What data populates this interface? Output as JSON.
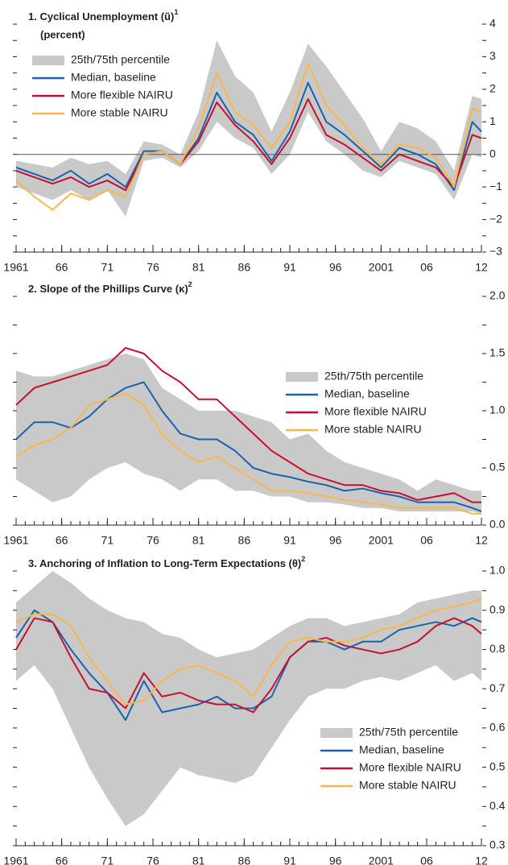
{
  "chart_data": [
    {
      "type": "line",
      "title": "1. Cyclical Unemployment (ũ)",
      "title_note": "1",
      "subtitle": "(percent)",
      "x": [
        1961,
        1963,
        1965,
        1967,
        1969,
        1971,
        1973,
        1975,
        1977,
        1979,
        1981,
        1983,
        1985,
        1987,
        1989,
        1991,
        1993,
        1995,
        1997,
        1999,
        2001,
        2003,
        2005,
        2007,
        2009,
        2011,
        2012
      ],
      "xlim": [
        1961,
        2012
      ],
      "xticks": [
        1961,
        {
          "value": 1966,
          "label": "66"
        },
        {
          "value": 1971,
          "label": "71"
        },
        {
          "value": 1976,
          "label": "76"
        },
        {
          "value": 1981,
          "label": "81"
        },
        {
          "value": 1986,
          "label": "86"
        },
        {
          "value": 1991,
          "label": "91"
        },
        {
          "value": 1996,
          "label": "96"
        },
        2001,
        {
          "value": 2006,
          "label": "06"
        },
        {
          "value": 2012,
          "label": "12"
        }
      ],
      "ylim": [
        -3,
        4
      ],
      "yticks": [
        {
          "value": -3,
          "label": "−3"
        },
        {
          "value": -2,
          "label": "−2"
        },
        {
          "value": -1,
          "label": "−1"
        },
        0,
        1,
        2,
        3,
        4
      ],
      "zero_line": true,
      "legend": "top-left",
      "series": [
        {
          "name": "25th/75th percentile",
          "type": "band",
          "color": "#c9c9c9",
          "low": [
            -1.0,
            -1.2,
            -1.4,
            -1.1,
            -1.4,
            -1.1,
            -1.9,
            -0.2,
            -0.1,
            -0.4,
            0.1,
            1.0,
            0.5,
            0.2,
            -0.6,
            0.0,
            1.3,
            0.4,
            0.0,
            -0.5,
            -0.7,
            -0.2,
            -0.4,
            -0.6,
            -1.4,
            0.0,
            -0.1
          ],
          "high": [
            -0.2,
            -0.3,
            -0.4,
            -0.1,
            -0.3,
            -0.2,
            -0.6,
            0.4,
            0.3,
            0.0,
            1.3,
            3.5,
            2.4,
            1.9,
            0.7,
            1.9,
            3.4,
            2.7,
            1.9,
            1.1,
            0.1,
            1.0,
            0.8,
            0.4,
            -0.5,
            1.8,
            1.7
          ]
        },
        {
          "name": "Median, baseline",
          "color": "#1a62ad",
          "values": [
            -0.4,
            -0.6,
            -0.8,
            -0.5,
            -0.9,
            -0.6,
            -1.0,
            0.1,
            0.1,
            -0.3,
            0.5,
            1.9,
            1.0,
            0.6,
            -0.2,
            0.7,
            2.2,
            1.0,
            0.6,
            0.1,
            -0.4,
            0.2,
            0.0,
            -0.3,
            -1.1,
            1.0,
            0.7
          ]
        },
        {
          "name": "More flexible NAIRU",
          "color": "#c8102e",
          "values": [
            -0.5,
            -0.7,
            -0.9,
            -0.7,
            -1.0,
            -0.8,
            -1.1,
            0.0,
            0.1,
            -0.3,
            0.4,
            1.6,
            0.9,
            0.4,
            -0.3,
            0.5,
            1.7,
            0.6,
            0.3,
            -0.1,
            -0.5,
            0.0,
            -0.2,
            -0.4,
            -1.0,
            0.6,
            0.5
          ]
        },
        {
          "name": "More stable NAIRU",
          "color": "#f9b74a",
          "values": [
            -0.8,
            -1.3,
            -1.7,
            -1.2,
            -1.4,
            -1.1,
            -1.3,
            0.0,
            0.1,
            -0.3,
            0.8,
            2.5,
            1.3,
            0.9,
            0.2,
            1.0,
            2.8,
            1.5,
            0.9,
            0.2,
            -0.3,
            0.3,
            0.2,
            -0.1,
            -1.0,
            1.4,
            1.3
          ]
        }
      ]
    },
    {
      "type": "line",
      "title": "2. Slope of the Phillips Curve (κ)",
      "title_note": "2",
      "x": [
        1961,
        1963,
        1965,
        1967,
        1969,
        1971,
        1973,
        1975,
        1977,
        1979,
        1981,
        1983,
        1985,
        1987,
        1989,
        1991,
        1993,
        1995,
        1997,
        1999,
        2001,
        2003,
        2005,
        2007,
        2009,
        2011,
        2012
      ],
      "xlim": [
        1961,
        2012
      ],
      "xticks": [
        1961,
        {
          "value": 1966,
          "label": "66"
        },
        {
          "value": 1971,
          "label": "71"
        },
        {
          "value": 1976,
          "label": "76"
        },
        {
          "value": 1981,
          "label": "81"
        },
        {
          "value": 1986,
          "label": "86"
        },
        {
          "value": 1991,
          "label": "91"
        },
        {
          "value": 1996,
          "label": "96"
        },
        2001,
        {
          "value": 2006,
          "label": "06"
        },
        {
          "value": 2012,
          "label": "12"
        }
      ],
      "ylim": [
        0,
        2
      ],
      "yticks": [
        {
          "value": 0,
          "label": "0.0"
        },
        0.5,
        {
          "value": 1,
          "label": "1.0"
        },
        1.5,
        {
          "value": 2,
          "label": "2.0"
        }
      ],
      "legend": "right",
      "series": [
        {
          "name": "25th/75th percentile",
          "type": "band",
          "color": "#c9c9c9",
          "low": [
            0.4,
            0.3,
            0.2,
            0.25,
            0.4,
            0.5,
            0.55,
            0.45,
            0.4,
            0.3,
            0.4,
            0.4,
            0.3,
            0.3,
            0.25,
            0.25,
            0.2,
            0.2,
            0.18,
            0.15,
            0.15,
            0.12,
            0.12,
            0.12,
            0.12,
            0.12,
            0.1
          ],
          "high": [
            1.35,
            1.3,
            1.3,
            1.35,
            1.4,
            1.45,
            1.5,
            1.45,
            1.2,
            1.1,
            1.0,
            1.0,
            1.0,
            0.95,
            0.9,
            0.75,
            0.8,
            0.65,
            0.55,
            0.5,
            0.45,
            0.4,
            0.3,
            0.4,
            0.35,
            0.3,
            0.3
          ]
        },
        {
          "name": "Median, baseline",
          "color": "#1a62ad",
          "values": [
            0.75,
            0.9,
            0.9,
            0.85,
            0.95,
            1.1,
            1.2,
            1.25,
            1.0,
            0.8,
            0.75,
            0.75,
            0.65,
            0.5,
            0.45,
            0.42,
            0.38,
            0.35,
            0.3,
            0.32,
            0.28,
            0.25,
            0.2,
            0.2,
            0.2,
            0.15,
            0.12
          ]
        },
        {
          "name": "More flexible NAIRU",
          "color": "#c8102e",
          "values": [
            1.05,
            1.2,
            1.25,
            1.3,
            1.35,
            1.4,
            1.55,
            1.5,
            1.35,
            1.25,
            1.1,
            1.1,
            0.95,
            0.8,
            0.65,
            0.55,
            0.45,
            0.4,
            0.35,
            0.35,
            0.3,
            0.28,
            0.22,
            0.25,
            0.28,
            0.2,
            0.2
          ]
        },
        {
          "name": "More stable NAIRU",
          "color": "#f9b74a",
          "values": [
            0.6,
            0.7,
            0.75,
            0.85,
            1.05,
            1.1,
            1.15,
            1.05,
            0.8,
            0.65,
            0.55,
            0.6,
            0.5,
            0.4,
            0.3,
            0.3,
            0.28,
            0.25,
            0.22,
            0.2,
            0.18,
            0.15,
            0.15,
            0.15,
            0.15,
            0.1,
            0.1
          ]
        }
      ]
    },
    {
      "type": "line",
      "title": "3. Anchoring of Inflation to Long-Term Expectations (θ)",
      "title_note": "2",
      "x": [
        1961,
        1963,
        1965,
        1967,
        1969,
        1971,
        1973,
        1975,
        1977,
        1979,
        1981,
        1983,
        1985,
        1987,
        1989,
        1991,
        1993,
        1995,
        1997,
        1999,
        2001,
        2003,
        2005,
        2007,
        2009,
        2011,
        2012
      ],
      "xlim": [
        1961,
        2012
      ],
      "xticks": [
        1961,
        {
          "value": 1966,
          "label": "66"
        },
        {
          "value": 1971,
          "label": "71"
        },
        {
          "value": 1976,
          "label": "76"
        },
        {
          "value": 1981,
          "label": "81"
        },
        {
          "value": 1986,
          "label": "86"
        },
        {
          "value": 1991,
          "label": "91"
        },
        {
          "value": 1996,
          "label": "96"
        },
        2001,
        {
          "value": 2006,
          "label": "06"
        },
        {
          "value": 2012,
          "label": "12"
        }
      ],
      "ylim": [
        0.3,
        1.0
      ],
      "yticks": [
        0.3,
        0.4,
        0.5,
        0.6,
        0.7,
        0.8,
        0.9,
        {
          "value": 1,
          "label": "1.0"
        }
      ],
      "legend": "bottom-right",
      "series": [
        {
          "name": "25th/75th percentile",
          "type": "band",
          "color": "#c9c9c9",
          "low": [
            0.72,
            0.76,
            0.7,
            0.6,
            0.5,
            0.42,
            0.35,
            0.38,
            0.44,
            0.5,
            0.48,
            0.47,
            0.46,
            0.48,
            0.55,
            0.62,
            0.68,
            0.7,
            0.7,
            0.72,
            0.73,
            0.72,
            0.74,
            0.76,
            0.72,
            0.74,
            0.72
          ],
          "high": [
            0.92,
            0.96,
            1.0,
            0.97,
            0.93,
            0.9,
            0.88,
            0.87,
            0.84,
            0.83,
            0.8,
            0.78,
            0.79,
            0.8,
            0.83,
            0.86,
            0.88,
            0.88,
            0.86,
            0.87,
            0.88,
            0.89,
            0.92,
            0.93,
            0.94,
            0.95,
            0.95
          ]
        },
        {
          "name": "Median, baseline",
          "color": "#1a62ad",
          "values": [
            0.83,
            0.9,
            0.87,
            0.8,
            0.74,
            0.69,
            0.62,
            0.72,
            0.64,
            0.65,
            0.66,
            0.68,
            0.65,
            0.65,
            0.68,
            0.78,
            0.82,
            0.82,
            0.8,
            0.82,
            0.82,
            0.85,
            0.86,
            0.87,
            0.86,
            0.88,
            0.87
          ]
        },
        {
          "name": "More flexible NAIRU",
          "color": "#c8102e",
          "values": [
            0.8,
            0.88,
            0.87,
            0.78,
            0.7,
            0.69,
            0.65,
            0.74,
            0.68,
            0.69,
            0.67,
            0.66,
            0.66,
            0.64,
            0.7,
            0.78,
            0.82,
            0.83,
            0.81,
            0.8,
            0.79,
            0.8,
            0.82,
            0.86,
            0.88,
            0.86,
            0.84
          ]
        },
        {
          "name": "More stable NAIRU",
          "color": "#f9b74a",
          "values": [
            0.87,
            0.89,
            0.89,
            0.86,
            0.78,
            0.72,
            0.66,
            0.67,
            0.72,
            0.75,
            0.76,
            0.74,
            0.72,
            0.68,
            0.76,
            0.82,
            0.83,
            0.82,
            0.82,
            0.83,
            0.85,
            0.86,
            0.88,
            0.9,
            0.91,
            0.92,
            0.93
          ]
        }
      ]
    }
  ]
}
